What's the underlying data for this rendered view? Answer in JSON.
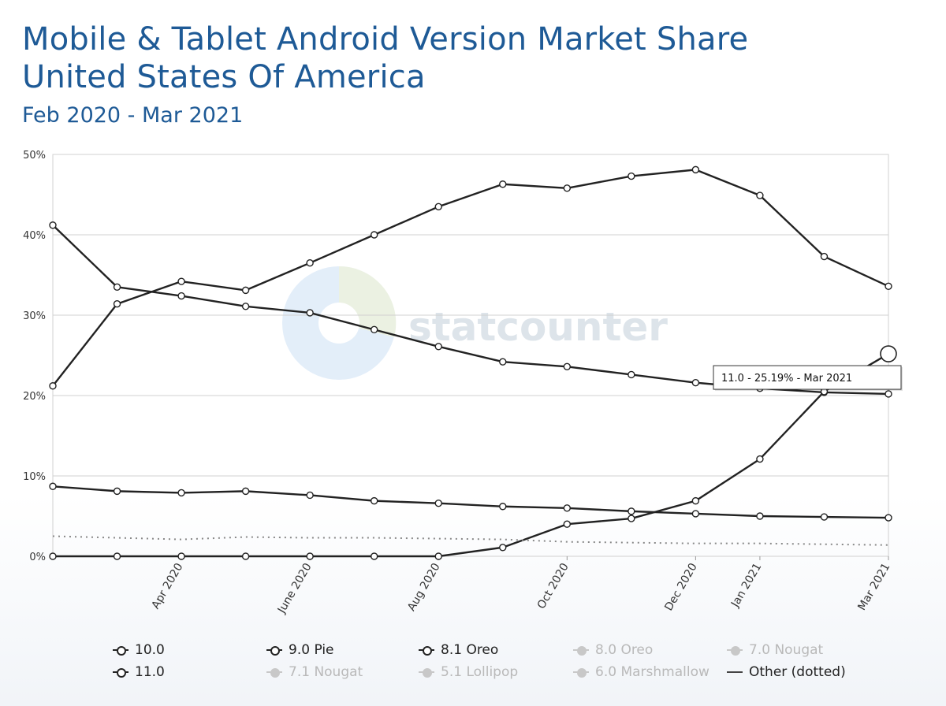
{
  "header": {
    "title_line1": "Mobile & Tablet Android Version Market Share",
    "title_line2": "United States Of America",
    "subtitle": "Feb 2020 - Mar 2021"
  },
  "watermark": {
    "text": "statcounter"
  },
  "tooltip": {
    "text": "11.0 - 25.19% - Mar 2021"
  },
  "colors": {
    "title": "#1e5a96",
    "line": "#222222",
    "grid": "#d0d0d0",
    "legend_disabled": "#b9b9b9"
  },
  "chart_data": {
    "type": "line",
    "ylim": [
      0,
      50
    ],
    "y_ticks": [
      "0%",
      "10%",
      "20%",
      "30%",
      "40%",
      "50%"
    ],
    "x_tick_labels": [
      "Apr 2020",
      "June 2020",
      "Aug 2020",
      "Oct 2020",
      "Dec 2020",
      "Jan 2021",
      "Mar 2021"
    ],
    "grid": true,
    "legend_placement": "bottom",
    "series": [
      {
        "name": "10.0",
        "values": [
          21.2,
          31.4,
          34.2,
          33.1,
          36.5,
          40.0,
          43.5,
          46.3,
          45.8,
          47.3,
          48.1,
          44.9,
          37.3,
          33.6
        ]
      },
      {
        "name": "9.0 Pie",
        "values": [
          41.2,
          33.5,
          32.4,
          31.1,
          30.3,
          28.2,
          26.1,
          24.2,
          23.6,
          22.6,
          21.6,
          20.9,
          20.4,
          20.2
        ]
      },
      {
        "name": "8.1 Oreo",
        "values": [
          8.7,
          8.1,
          7.9,
          8.1,
          7.6,
          6.9,
          6.6,
          6.2,
          6.0,
          5.6,
          5.3,
          5.0,
          4.9,
          4.8
        ]
      },
      {
        "name": "11.0",
        "values": [
          0,
          0,
          0,
          0,
          0,
          0,
          0,
          1.1,
          4.0,
          4.7,
          6.9,
          12.1,
          20.5,
          25.19
        ]
      },
      {
        "name": "Other (dotted)",
        "values": [
          2.5,
          2.3,
          2.1,
          2.4,
          2.3,
          2.3,
          2.2,
          2.1,
          1.8,
          1.7,
          1.6,
          1.6,
          1.5,
          1.4
        ]
      }
    ]
  },
  "legend": [
    {
      "label": "10.0",
      "enabled": true,
      "kind": "dot"
    },
    {
      "label": "9.0 Pie",
      "enabled": true,
      "kind": "dot"
    },
    {
      "label": "8.1 Oreo",
      "enabled": true,
      "kind": "dot"
    },
    {
      "label": "8.0 Oreo",
      "enabled": false,
      "kind": "dot"
    },
    {
      "label": "7.0 Nougat",
      "enabled": false,
      "kind": "dot"
    },
    {
      "label": "11.0",
      "enabled": true,
      "kind": "dot"
    },
    {
      "label": "7.1 Nougat",
      "enabled": false,
      "kind": "dot"
    },
    {
      "label": "5.1 Lollipop",
      "enabled": false,
      "kind": "dot"
    },
    {
      "label": "6.0 Marshmallow",
      "enabled": false,
      "kind": "dot"
    },
    {
      "label": "Other (dotted)",
      "enabled": true,
      "kind": "line"
    }
  ]
}
